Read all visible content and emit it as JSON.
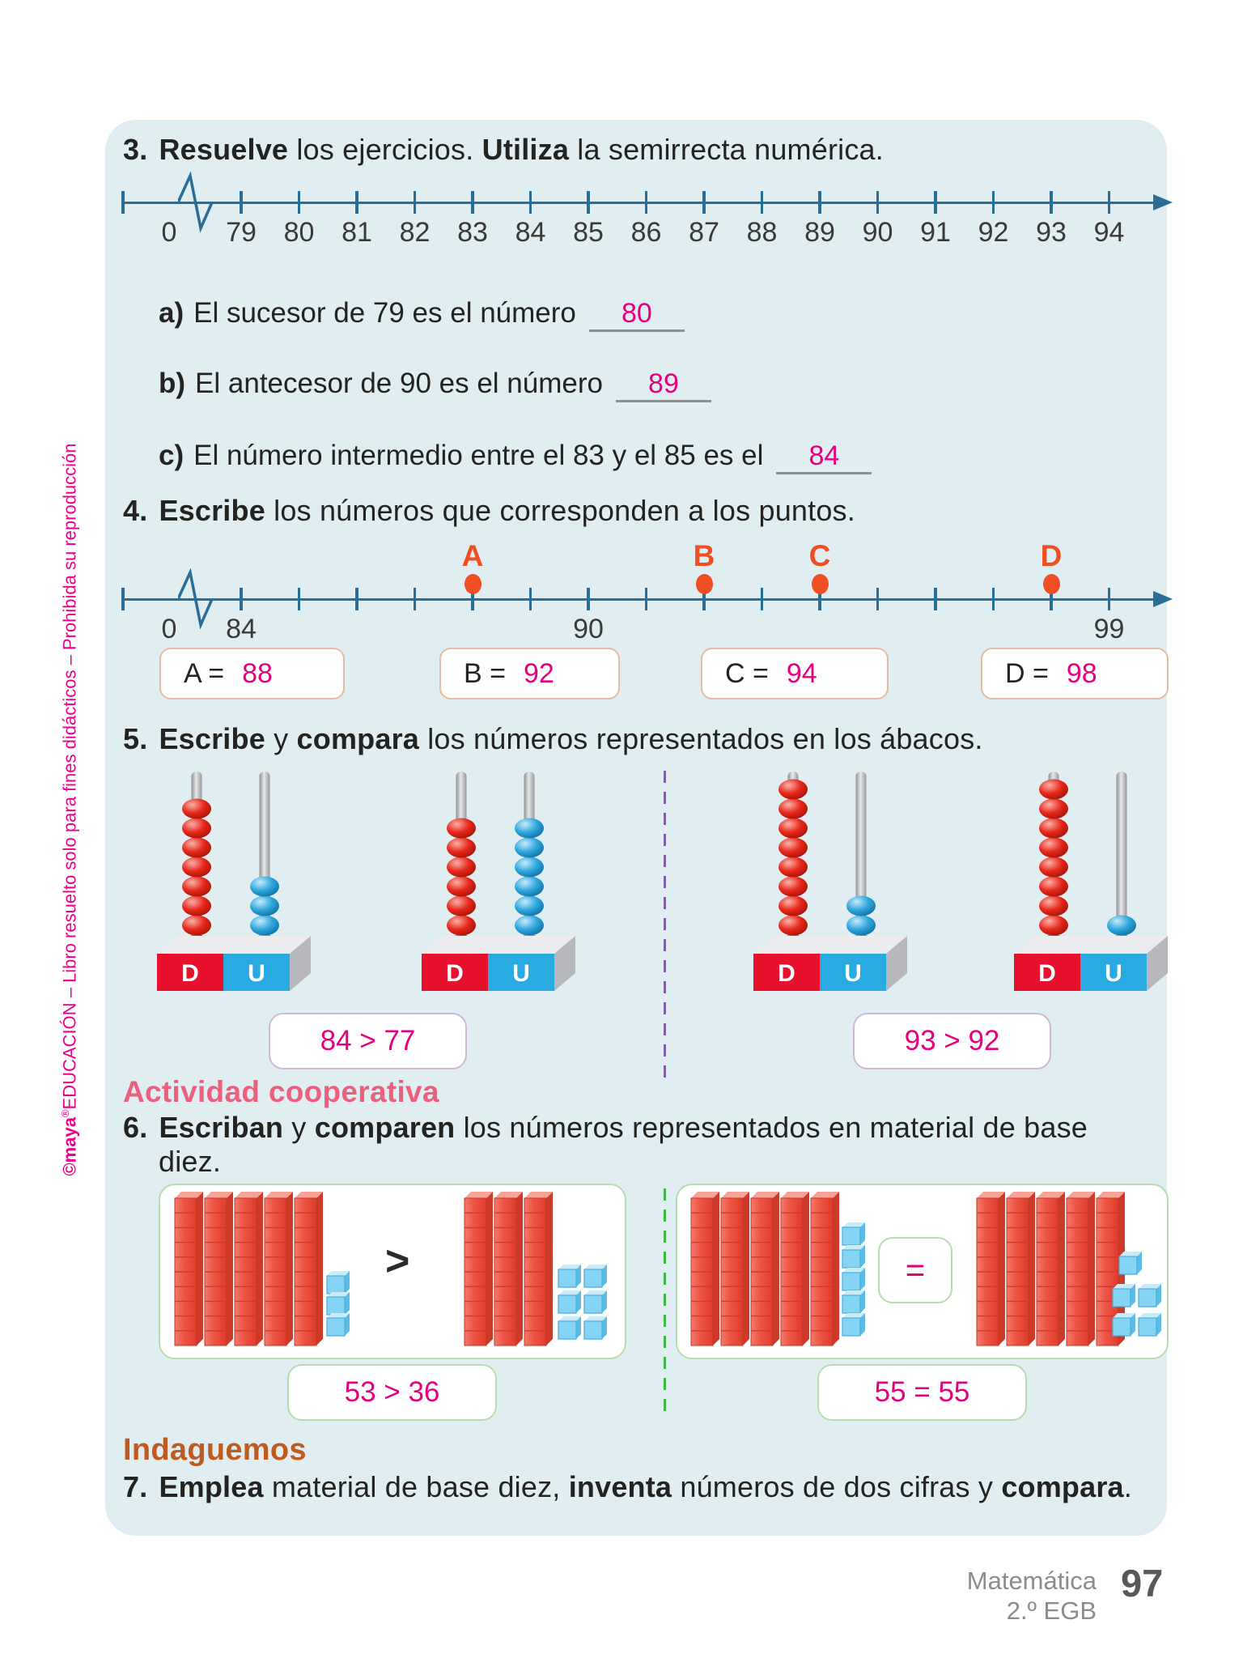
{
  "colors": {
    "panel_bg": "#e1eef1",
    "line": "#2a6d96",
    "magenta": "#e5007d",
    "point_orange": "#f04e23",
    "coop_pink": "#ec5f7f",
    "inda_orange": "#c05a1e",
    "bead_red": "#e8281c",
    "bead_blue": "#2fa7df",
    "base_red": "#e8112d",
    "base_blue": "#29abe2",
    "rod_red": "#ee5546",
    "cube_blue": "#86d4f3"
  },
  "sidebar": {
    "brand": "©maya",
    "trademark": "®",
    "brand2": "EDUCACIÓN",
    "rest": " – Libro resuelto solo para fines didácticos – Prohibida su reproducción"
  },
  "ex3": {
    "num": "3.",
    "title": [
      {
        "t": "Resuelve",
        "b": 1
      },
      {
        "t": " los ejercicios. "
      },
      {
        "t": "Utiliza",
        "b": 1
      },
      {
        "t": " la semirrecta numérica."
      }
    ],
    "numberline": {
      "zero": "0",
      "ticks": [
        {
          "label": "79"
        },
        {
          "label": "80"
        },
        {
          "label": "81"
        },
        {
          "label": "82"
        },
        {
          "label": "83"
        },
        {
          "label": "84"
        },
        {
          "label": "85"
        },
        {
          "label": "86"
        },
        {
          "label": "87"
        },
        {
          "label": "88"
        },
        {
          "label": "89"
        },
        {
          "label": "90"
        },
        {
          "label": "91"
        },
        {
          "label": "92"
        },
        {
          "label": "93"
        },
        {
          "label": "94"
        }
      ]
    },
    "items": [
      {
        "label": "a)",
        "text": "El sucesor de 79 es el número",
        "answer": "80"
      },
      {
        "label": "b)",
        "text": "El antecesor de 90 es el número",
        "answer": "89"
      },
      {
        "label": "c)",
        "text": "El número intermedio entre el 83 y el 85 es el",
        "answer": "84"
      }
    ]
  },
  "ex4": {
    "num": "4.",
    "title": [
      {
        "t": "Escribe",
        "b": 1
      },
      {
        "t": " los números que corresponden a los puntos."
      }
    ],
    "numberline": {
      "zero": "0",
      "ticks": [
        {
          "label": "84"
        },
        {},
        {},
        {},
        {
          "point": "A"
        },
        {},
        {
          "label": "90"
        },
        {},
        {
          "point": "B"
        },
        {},
        {
          "point": "C"
        },
        {},
        {},
        {},
        {
          "point": "D"
        },
        {
          "label": "99"
        }
      ]
    },
    "answers": [
      {
        "label": "A =",
        "value": "88"
      },
      {
        "label": "B =",
        "value": "92"
      },
      {
        "label": "C =",
        "value": "94"
      },
      {
        "label": "D =",
        "value": "98"
      }
    ]
  },
  "ex5": {
    "num": "5.",
    "title": [
      {
        "t": "Escribe",
        "b": 1
      },
      {
        "t": " y "
      },
      {
        "t": "compara",
        "b": 1
      },
      {
        "t": " los números representados en los ábacos."
      }
    ],
    "abacus_labels": {
      "tens": "D",
      "units": "U"
    },
    "abacuses": [
      {
        "tens": 8,
        "units": 4
      },
      {
        "tens": 7,
        "units": 7
      },
      {
        "tens": 9,
        "units": 3
      },
      {
        "tens": 9,
        "units": 2
      }
    ],
    "answers": [
      "84 > 77",
      "93 > 92"
    ]
  },
  "coop": {
    "heading": "Actividad cooperativa",
    "num": "6.",
    "title": [
      {
        "t": "Escriban",
        "b": 1
      },
      {
        "t": " y "
      },
      {
        "t": "comparen",
        "b": 1
      },
      {
        "t": " los números representados en material de base"
      }
    ],
    "title_line2": "diez.",
    "boxes": [
      {
        "left_rods": 5,
        "left_cubes": 3,
        "symbol": ">",
        "symbol_boxed": false,
        "right_rods": 3,
        "right_cubes": 6,
        "answer": "53 > 36"
      },
      {
        "left_rods": 5,
        "left_cubes": 5,
        "symbol": "=",
        "symbol_boxed": true,
        "right_rods": 5,
        "right_cubes": 5,
        "answer": "55 = 55"
      }
    ]
  },
  "indaguemos": {
    "heading": "Indaguemos",
    "num": "7.",
    "title": [
      {
        "t": "Emplea",
        "b": 1
      },
      {
        "t": " material de base diez, "
      },
      {
        "t": "inventa",
        "b": 1
      },
      {
        "t": " números de dos cifras y "
      },
      {
        "t": "compara",
        "b": 1
      },
      {
        "t": "."
      }
    ]
  },
  "footer": {
    "subject": "Matemática",
    "grade": "2.º EGB",
    "page": "97"
  }
}
